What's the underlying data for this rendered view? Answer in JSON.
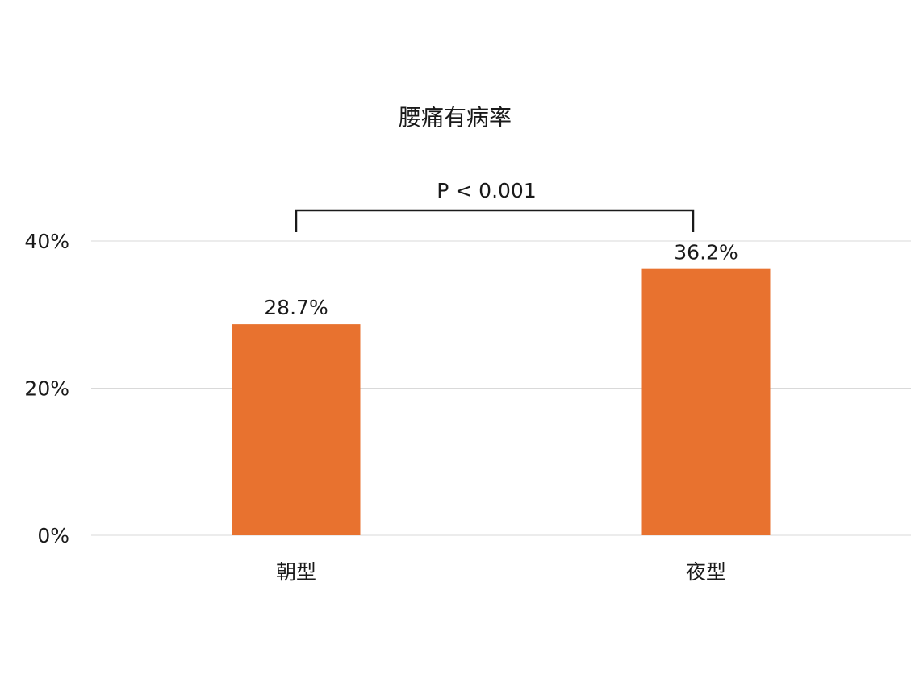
{
  "chart_data": {
    "type": "bar",
    "title": "腰痛有病率",
    "categories": [
      "朝型",
      "夜型"
    ],
    "values": [
      28.7,
      36.2
    ],
    "value_labels": [
      "28.7%",
      "36.2%"
    ],
    "ylim": [
      0,
      40
    ],
    "yticks": [
      0,
      20,
      40
    ],
    "ytick_labels": [
      "0%",
      "20%",
      "40%"
    ],
    "xlabel": "",
    "ylabel": "",
    "grid": true,
    "legend": "none",
    "bar_color": "#E8722F",
    "annotation": {
      "text": "P < 0.001",
      "type": "significance-bracket",
      "between": [
        "朝型",
        "夜型"
      ]
    }
  }
}
